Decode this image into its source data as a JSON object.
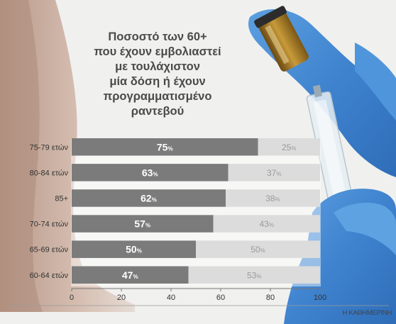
{
  "title_lines": [
    "Ποσοστό των 60+",
    "που έχουν εμβολιαστεί",
    "με τουλάχιστον",
    "μία δόση ή έχουν",
    "προγραμματισμένο",
    "ραντεβού"
  ],
  "source": "Η ΚΑΘΗΜΕΡΙΝΗ",
  "colors": {
    "primary": "#7b7b7b",
    "secondary": "#dcdcdc",
    "label_light": "#ffffff",
    "label_dark": "#9a9a9a"
  },
  "chart_data": {
    "type": "bar",
    "orientation": "horizontal",
    "stacked": true,
    "categories": [
      "75-79 ετών",
      "80-84 ετών",
      "85+",
      "70-74 ετών",
      "65-69 ετών",
      "60-64 ετών"
    ],
    "series": [
      {
        "values": [
          75,
          63,
          62,
          57,
          50,
          47
        ]
      },
      {
        "values": [
          25,
          37,
          38,
          43,
          50,
          53
        ]
      }
    ],
    "value_suffix": "%",
    "xlim": [
      0,
      100
    ],
    "xticks": [
      0,
      20,
      40,
      60,
      80,
      100
    ],
    "grid": false,
    "legend": "none"
  }
}
